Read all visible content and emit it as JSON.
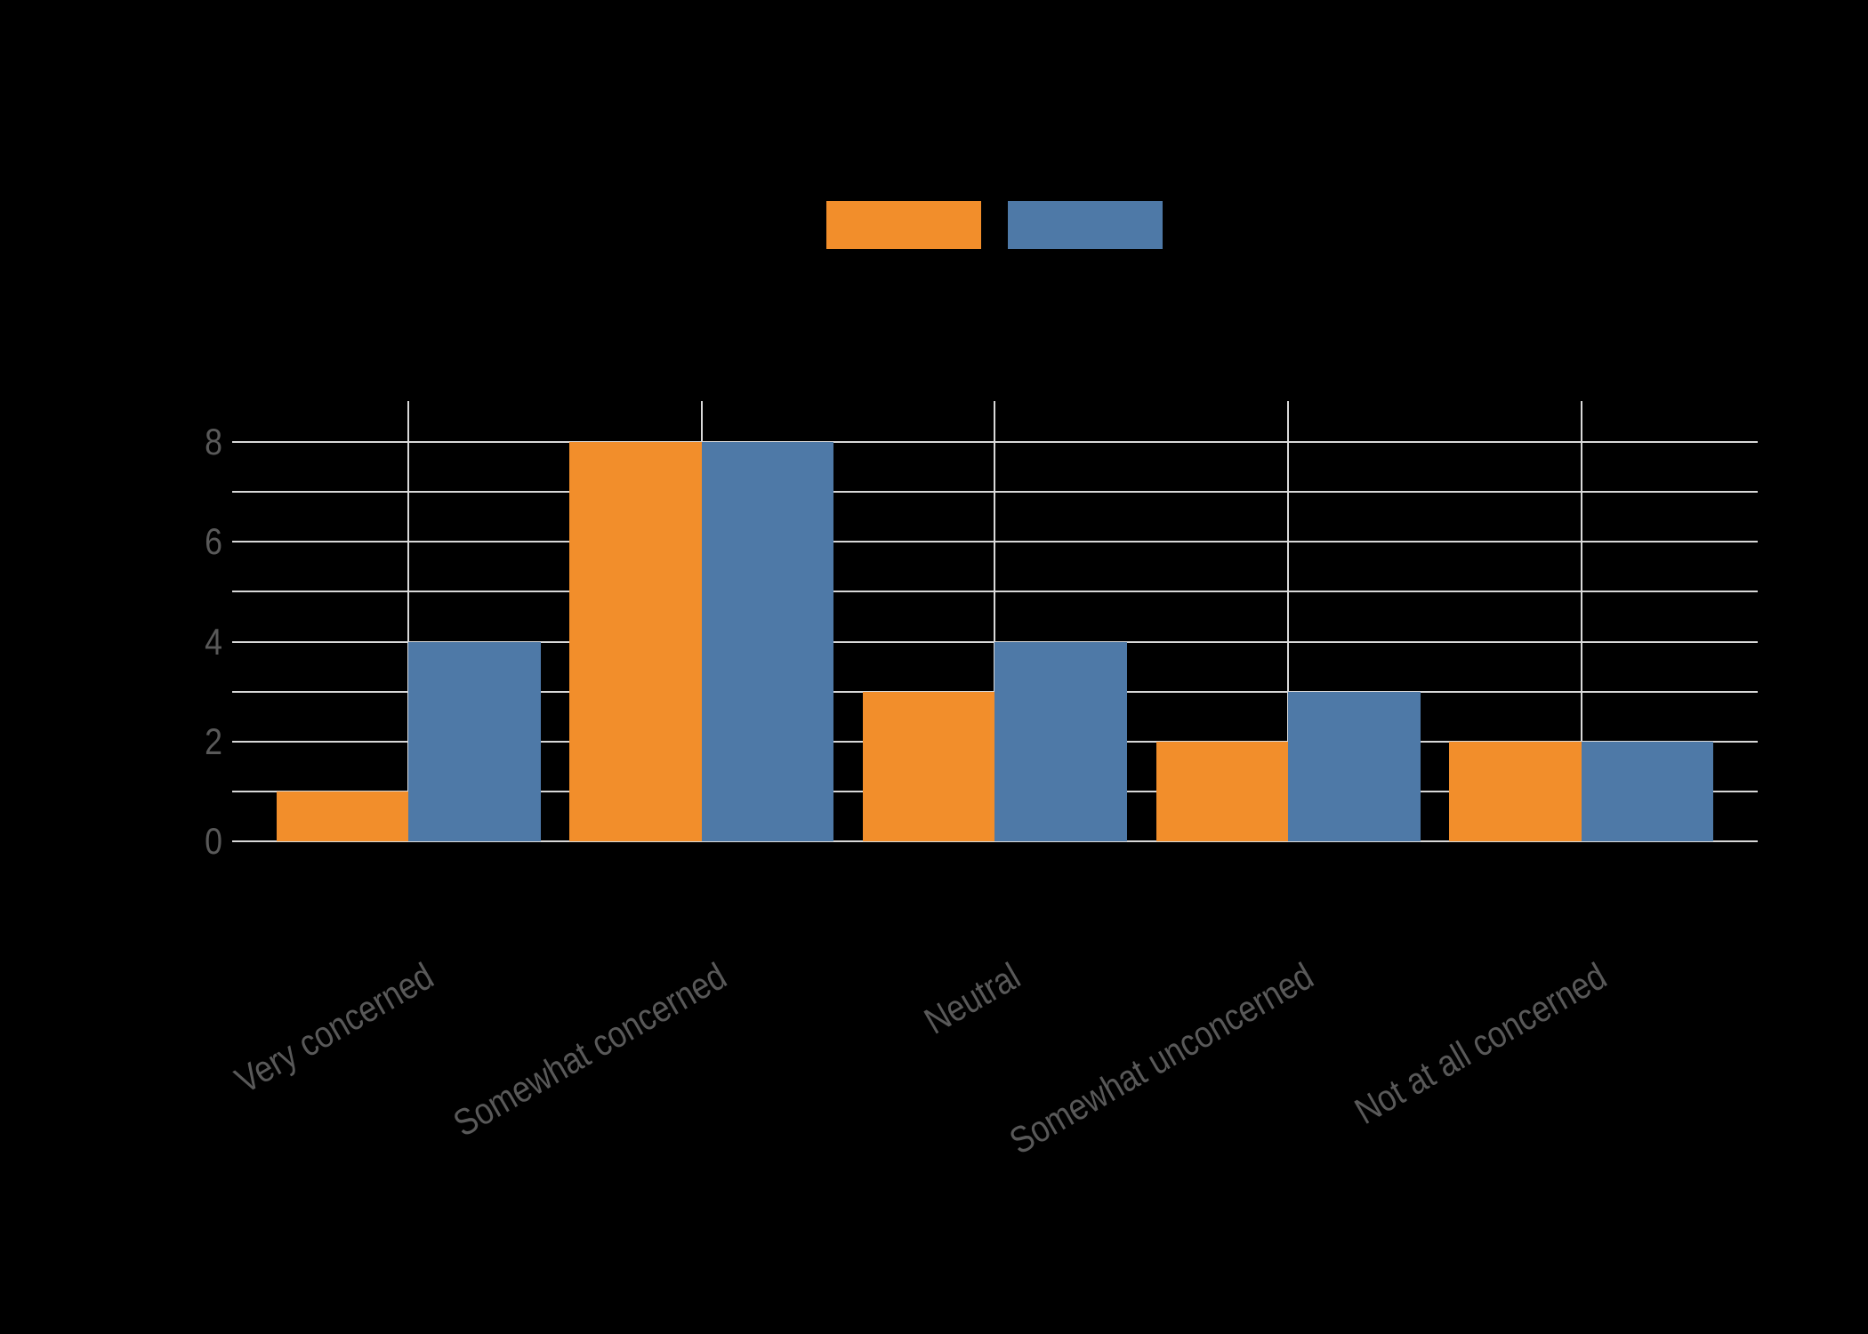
{
  "chart_data": {
    "type": "bar",
    "title": "",
    "xlabel": "",
    "ylabel": "",
    "categories": [
      "Very concerned",
      "Somewhat concerned",
      "Neutral",
      "Somewhat unconcerned",
      "Not at all concerned"
    ],
    "series": [
      {
        "name": "",
        "color": "#F28E2B",
        "values": [
          1,
          8,
          3,
          2,
          2
        ]
      },
      {
        "name": "",
        "color": "#4E79A7",
        "values": [
          4,
          8,
          4,
          3,
          2
        ]
      }
    ],
    "ylim": [
      0,
      8.6
    ],
    "yticks": [
      0,
      2,
      4,
      6,
      8
    ],
    "grid": true,
    "legend_position": "top-center"
  },
  "colors": {
    "background": "#000000",
    "grid": "#d9d9d9",
    "tick_label": "#595959"
  }
}
